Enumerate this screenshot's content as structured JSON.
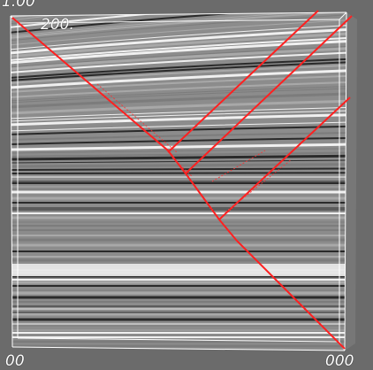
{
  "viewer": {
    "labels": {
      "top_left_corner": "1.00",
      "top_axis_tick": "200.",
      "bottom_left_corner": "00",
      "bottom_right_corner": "000"
    }
  },
  "colors": {
    "background": "#6b6b6b",
    "frame": "#ffffff",
    "trace_red": "#ff2020",
    "trace_dark": "#b0b0b0",
    "trace_light": "#f4f4f4"
  }
}
